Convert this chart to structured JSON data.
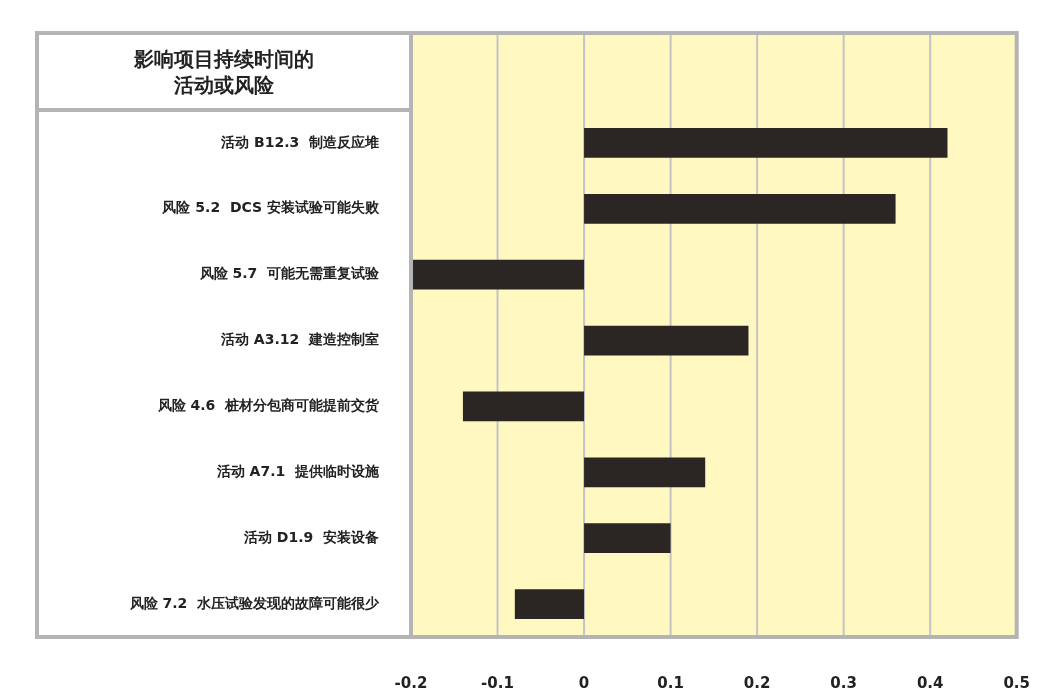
{
  "chart_data": {
    "type": "bar",
    "orientation": "horizontal",
    "title": "影响项目持续时间的活动或风险",
    "categories": [
      "活动 B12.3  制造反应堆",
      "风险 5.2  DCS 安装试验可能失败",
      "风险 5.7  可能无需重复试验",
      "活动 A3.12  建造控制室",
      "风险 4.6  桩材分包商可能提前交货",
      "活动 A7.1  提供临时设施",
      "活动 D1.9  安装设备",
      "风险 7.2  水压试验发现的故障可能很少"
    ],
    "values": [
      0.42,
      0.36,
      -0.2,
      0.19,
      -0.14,
      0.14,
      0.1,
      -0.08
    ],
    "color": "#2b2523",
    "xlim": [
      -0.2,
      0.5
    ],
    "xticks": [
      -0.2,
      -0.1,
      0,
      0.1,
      0.2,
      0.3,
      0.4,
      0.5
    ],
    "grid": "x",
    "legend": false
  }
}
